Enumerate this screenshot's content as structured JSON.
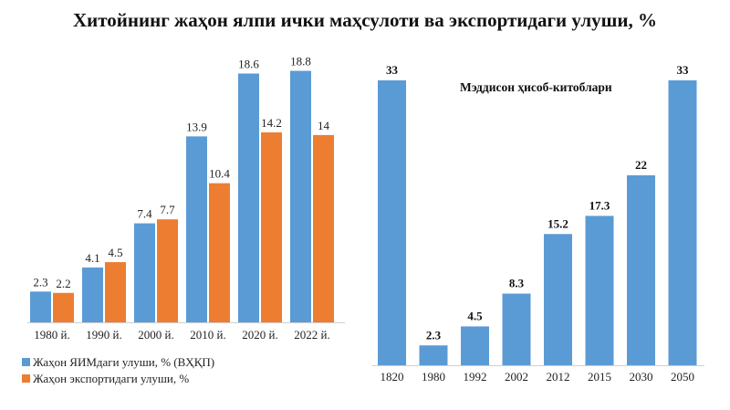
{
  "title": "Хитойнинг жаҳон ялпи ички маҳсулоти ва экспортидаги улуши, %",
  "colors": {
    "blue": "#5B9BD5",
    "orange": "#ED7D31"
  },
  "chart_data": [
    {
      "type": "bar",
      "categories": [
        "1980 й.",
        "1990 й.",
        "2000 й.",
        "2010 й.",
        "2020 й.",
        "2022 й."
      ],
      "series": [
        {
          "name": "Жаҳон ЯИМдаги улуши, % (ВҲҚП)",
          "values": [
            2.3,
            4.1,
            7.4,
            13.9,
            18.6,
            18.8
          ],
          "color": "#5B9BD5"
        },
        {
          "name": "Жаҳон экспортидаги улуши, %",
          "values": [
            2.2,
            4.5,
            7.7,
            10.4,
            14.2,
            14
          ],
          "color": "#ED7D31"
        }
      ],
      "ylim": [
        0,
        20
      ],
      "grid": false,
      "legend_position": "bottom-left"
    },
    {
      "type": "bar",
      "categories": [
        "1820",
        "1980",
        "1992",
        "2002",
        "2012",
        "2015",
        "2030",
        "2050"
      ],
      "values": [
        33,
        2.3,
        4.5,
        8.3,
        15.2,
        17.3,
        22,
        33
      ],
      "color": "#5B9BD5",
      "annotation": "Мэддисон ҳисоб-китоблари",
      "ylim": [
        0,
        35
      ],
      "grid": false
    }
  ]
}
